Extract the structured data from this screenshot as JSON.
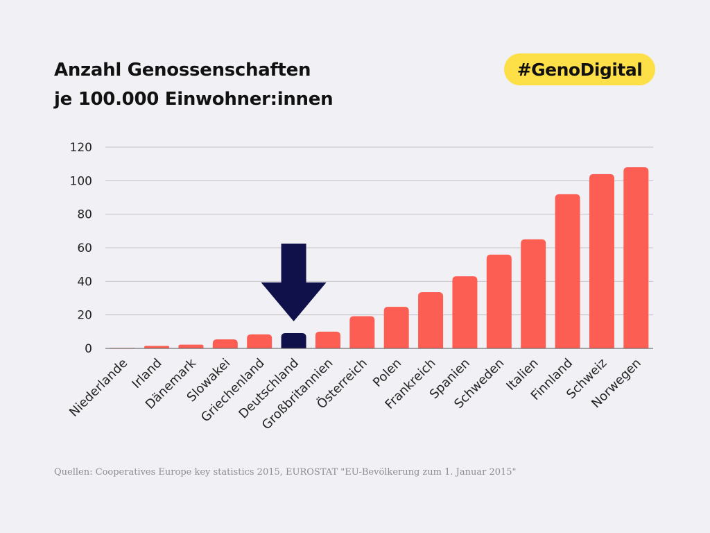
{
  "title_line1": "Anzahl Genossenschaften",
  "title_line2": "je 100.000 Einwohner:innen",
  "badge": "#GenoDigital",
  "source": "Quellen: Cooperatives Europe key statistics 2015, EUROSTAT \"EU-Bevölkerung zum 1. Januar 2015\"",
  "colors": {
    "bar": "#fd5e53",
    "highlight": "#10104a",
    "badge": "#fde047",
    "background": "#f1f0f4"
  },
  "chart_data": {
    "type": "bar",
    "categories": [
      "Niederlande",
      "Irland",
      "Dänemark",
      "Slowakei",
      "Griechenland",
      "Deutschland",
      "Großbritannien",
      "Österreich",
      "Polen",
      "Frankreich",
      "Spanien",
      "Schweden",
      "Italien",
      "Finnland",
      "Schweiz",
      "Norwegen"
    ],
    "values": [
      0.3,
      1.5,
      2.2,
      5.4,
      8.4,
      9.1,
      10,
      19.2,
      24.8,
      33.5,
      43,
      55.9,
      65,
      91.9,
      103.9,
      108
    ],
    "highlight": "Deutschland",
    "annotation": "down-arrow pointing at Deutschland",
    "yticks": [
      0,
      20,
      40,
      60,
      80,
      100,
      120
    ],
    "ylim": [
      0,
      120
    ],
    "grid": true,
    "xlabel": "",
    "ylabel": ""
  }
}
